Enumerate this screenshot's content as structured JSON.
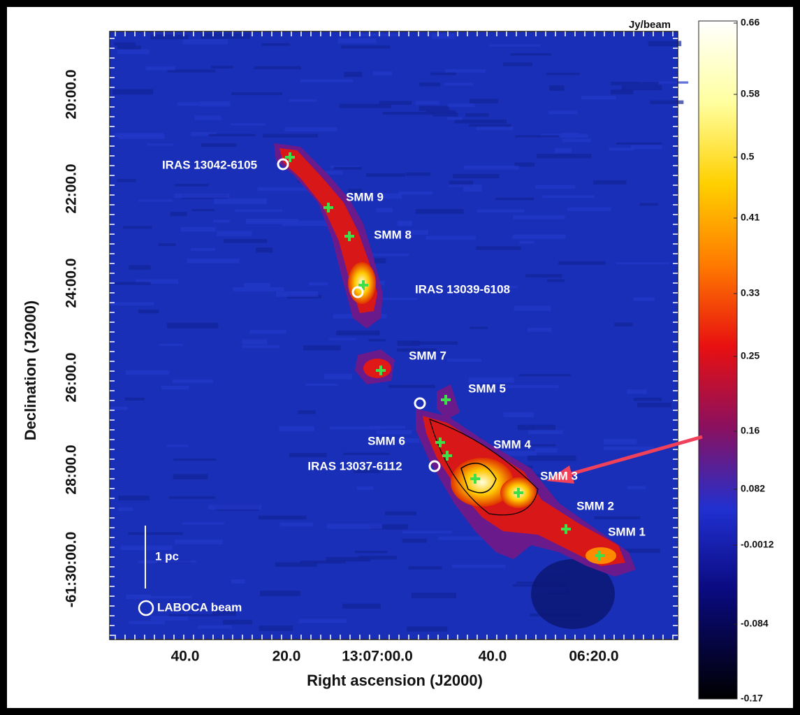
{
  "figure": {
    "colorbar_title": "Jy/beam",
    "colorbar_ticks": [
      "0.66",
      "0.58",
      "0.5",
      "0.41",
      "0.33",
      "0.25",
      "0.16",
      "0.082",
      "-0.0012",
      "-0.084",
      "-0.17"
    ],
    "x_axis": {
      "label": "Right ascension (J2000)",
      "ticks": [
        "40.0",
        "20.0",
        "13:07:00.0",
        "40.0",
        "06:20.0"
      ]
    },
    "y_axis": {
      "label": "Declination (J2000)",
      "ticks": [
        "20:00.0",
        "22:00.0",
        "24:00.0",
        "26:00.0",
        "28:00.0",
        "-61:30:00.0"
      ]
    },
    "sources": [
      "IRAS 13042-6105",
      "SMM 9",
      "SMM 8",
      "IRAS 13039-6108",
      "SMM 7",
      "SMM 5",
      "SMM 6",
      "SMM 4",
      "IRAS 13037-6112",
      "SMM 3",
      "SMM 2",
      "SMM 1"
    ],
    "scale_bar": "1 pc",
    "beam_label": "LABOCA beam"
  }
}
